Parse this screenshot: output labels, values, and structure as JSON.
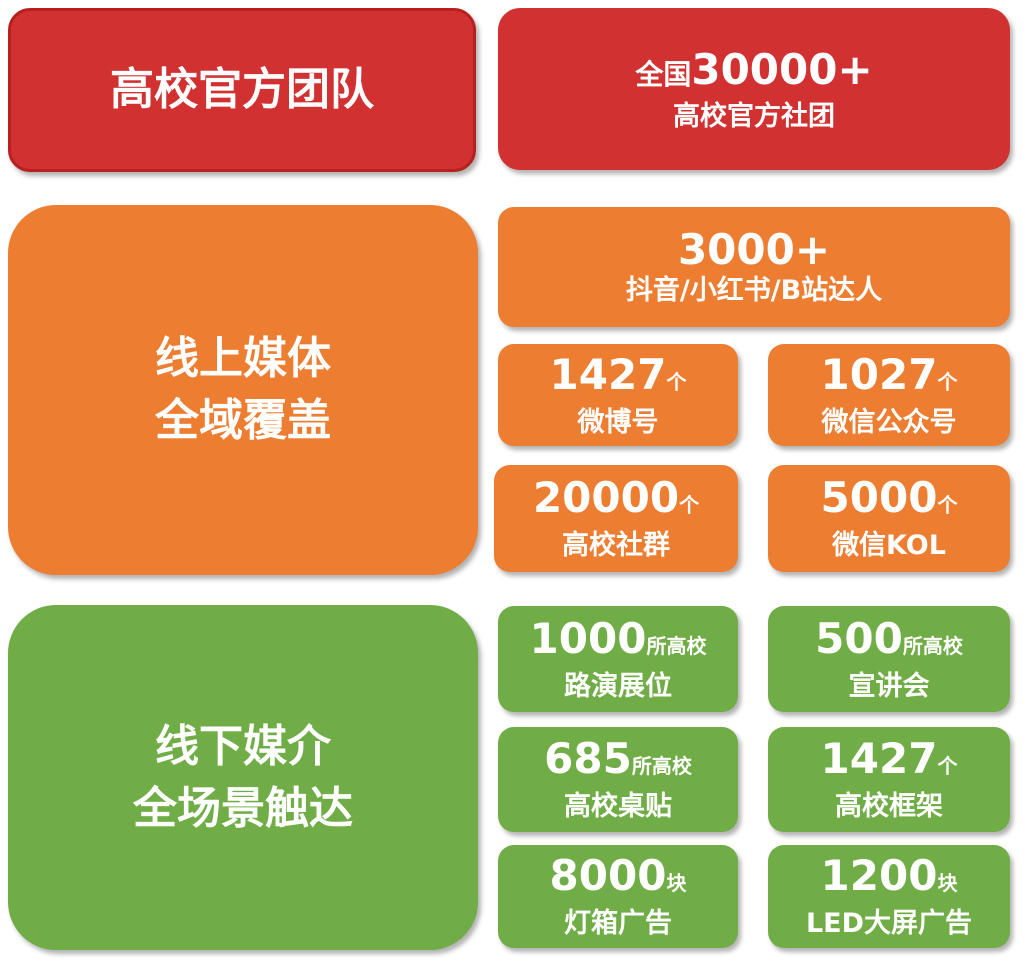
{
  "colors": {
    "red": "#d13131",
    "orange": "#ed7d31",
    "green": "#70ad47"
  },
  "official": {
    "title": "高校官方团队",
    "prefix": "全国",
    "number": "30000+",
    "label": "高校官方社团"
  },
  "online": {
    "title_line1": "线上媒体",
    "title_line2": "全域覆盖",
    "top": {
      "number": "3000+",
      "label": "抖音/小红书/B站达人"
    },
    "items": [
      {
        "number": "1427",
        "unit": "个",
        "label": "微博号"
      },
      {
        "number": "1027",
        "unit": "个",
        "label": "微信公众号"
      },
      {
        "number": "20000",
        "unit": "个",
        "label": "高校社群"
      },
      {
        "number": "5000",
        "unit": "个",
        "label": "微信KOL"
      }
    ]
  },
  "offline": {
    "title_line1": "线下媒介",
    "title_line2": "全场景触达",
    "items": [
      {
        "number": "1000",
        "unit": "所高校",
        "label": "路演展位"
      },
      {
        "number": "500",
        "unit": "所高校",
        "label": "宣讲会"
      },
      {
        "number": "685",
        "unit": "所高校",
        "label": "高校桌贴"
      },
      {
        "number": "1427",
        "unit": "个",
        "label": "高校框架"
      },
      {
        "number": "8000",
        "unit": "块",
        "label": "灯箱广告"
      },
      {
        "number": "1200",
        "unit": "块",
        "label": "LED大屏广告"
      }
    ]
  }
}
